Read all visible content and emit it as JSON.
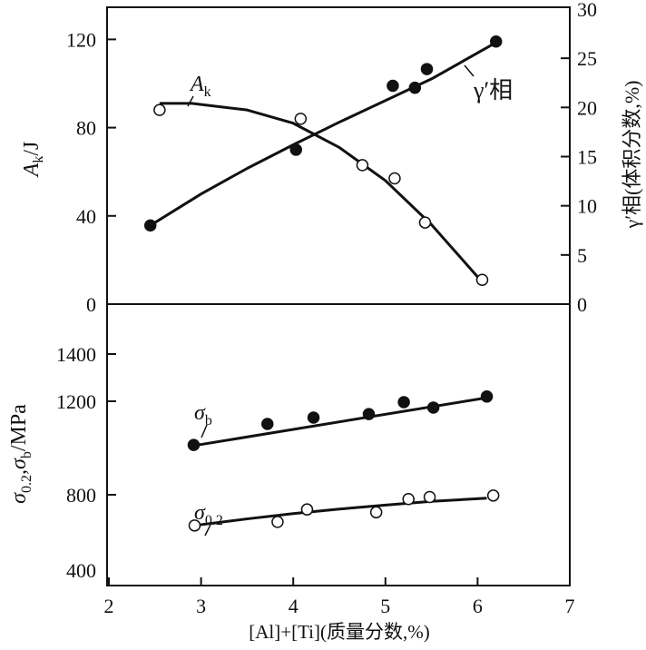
{
  "chart_data": [
    {
      "type": "scatter",
      "panel": "top",
      "xlabel": "[Al]+[Ti](质量分数,%)",
      "ylabel_left": "A_k/J",
      "ylabel_right": "γ′相(体积分数,%)",
      "xlim": [
        2,
        7
      ],
      "ylim_left": [
        0,
        134
      ],
      "ylim_right": [
        0,
        30
      ],
      "x_ticks": [
        2,
        3,
        4,
        5,
        6,
        7
      ],
      "y_ticks_left": [
        0,
        40,
        80,
        120
      ],
      "y_ticks_right": [
        0,
        5,
        10,
        15,
        20,
        25,
        30
      ],
      "series": [
        {
          "name": "A_k",
          "label_main": "A",
          "label_sub": "k",
          "axis": "left",
          "marker": "open-circle",
          "x": [
            2.55,
            4.08,
            4.75,
            5.1,
            5.43,
            6.05
          ],
          "y": [
            88,
            84,
            63,
            57,
            37,
            11
          ],
          "fit_x": [
            2.55,
            2.9,
            3.5,
            4.0,
            4.5,
            5.0,
            5.5,
            6.05
          ],
          "fit_y": [
            91,
            91,
            88,
            82,
            71,
            56,
            36,
            10
          ]
        },
        {
          "name": "γ′相",
          "axis": "right",
          "marker": "filled-circle",
          "x": [
            2.45,
            4.03,
            5.08,
            5.32,
            5.45,
            6.2
          ],
          "y": [
            8.0,
            15.7,
            22.2,
            22.0,
            23.9,
            26.7
          ],
          "fit_x": [
            2.45,
            3.0,
            3.5,
            4.0,
            4.5,
            5.0,
            5.5,
            6.2
          ],
          "fit_y": [
            8.0,
            11.2,
            13.8,
            16.2,
            18.5,
            20.7,
            22.9,
            26.6
          ]
        }
      ]
    },
    {
      "type": "scatter",
      "panel": "bottom",
      "xlabel": "[Al]+[Ti](质量分数,%)",
      "ylabel": "σ0.2,σb/MPa",
      "ylabel_parts": [
        "σ",
        "0.2",
        ",σ",
        "b",
        "/MPa"
      ],
      "xlim": [
        2,
        7
      ],
      "y_ticks": [
        400,
        800,
        1200,
        1400
      ],
      "series": [
        {
          "name": "σb",
          "label_main": "σ",
          "label_sub": "b",
          "marker": "filled-circle",
          "x": [
            2.92,
            3.72,
            4.22,
            4.82,
            5.2,
            5.52,
            6.1
          ],
          "y": [
            1013,
            1103,
            1130,
            1145,
            1196,
            1173,
            1220
          ],
          "fit_x": [
            2.92,
            6.1
          ],
          "fit_y": [
            1010,
            1215
          ]
        },
        {
          "name": "σ0.2",
          "label_main": "σ",
          "label_sub": "0.2",
          "marker": "open-circle",
          "x": [
            2.93,
            3.83,
            4.15,
            4.9,
            5.25,
            5.48,
            6.17
          ],
          "y": [
            637,
            656,
            722,
            707,
            777,
            788,
            796
          ],
          "fit_x": [
            2.93,
            3.5,
            4.0,
            4.5,
            5.0,
            5.5,
            6.1
          ],
          "fit_y": [
            637,
            672,
            700,
            724,
            745,
            765,
            782
          ]
        }
      ]
    }
  ]
}
